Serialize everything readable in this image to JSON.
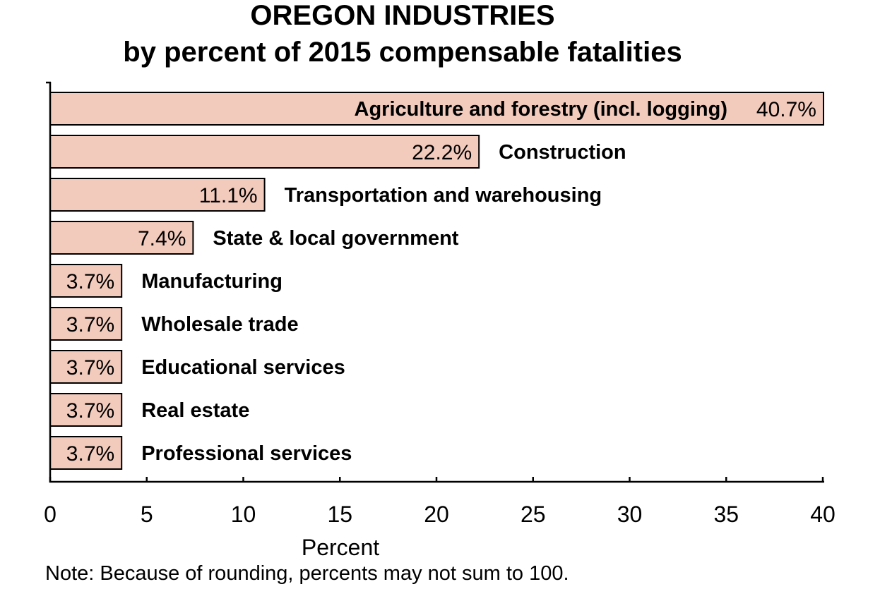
{
  "chart_data": {
    "type": "bar",
    "orientation": "horizontal",
    "title": "OREGON INDUSTRIES",
    "subtitle": "by percent of 2015 compensable fatalities",
    "xlabel": "Percent",
    "ylabel": "",
    "xlim": [
      0,
      40
    ],
    "xticks": [
      "0",
      "5",
      "10",
      "15",
      "20",
      "25",
      "30",
      "35",
      "40"
    ],
    "grid": false,
    "bar_color": "#f2cbbd",
    "categories": [
      "Agriculture and forestry (incl. logging)",
      "Construction",
      "Transportation and warehousing",
      "State & local government",
      "Manufacturing",
      "Wholesale trade",
      "Educational services",
      "Real estate",
      "Professional services"
    ],
    "values": [
      40.7,
      22.2,
      11.1,
      7.4,
      3.7,
      3.7,
      3.7,
      3.7,
      3.7
    ],
    "value_labels": [
      "40.7%",
      "22.2%",
      "11.1%",
      "7.4%",
      "3.7%",
      "3.7%",
      "3.7%",
      "3.7%",
      "3.7%"
    ],
    "note": "Note: Because of rounding, percents may not sum to 100."
  }
}
